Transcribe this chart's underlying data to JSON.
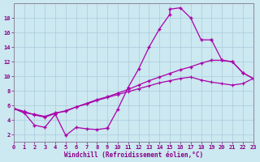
{
  "background_color": "#cce8f0",
  "grid_color": "#aaccdd",
  "line_color": "#aa00aa",
  "tick_color": "#880088",
  "xlabel": "Windchill (Refroidissement éolien,°C)",
  "xlim": [
    0,
    23
  ],
  "ylim": [
    1,
    20
  ],
  "yticks": [
    2,
    4,
    6,
    8,
    10,
    12,
    14,
    16,
    18
  ],
  "xticks": [
    0,
    1,
    2,
    3,
    4,
    5,
    6,
    7,
    8,
    9,
    10,
    11,
    12,
    13,
    14,
    15,
    16,
    17,
    18,
    19,
    20,
    21,
    22,
    23
  ],
  "curve_jagged_x": [
    0,
    1,
    2,
    3,
    4,
    5,
    6,
    7,
    8,
    9
  ],
  "curve_jagged_y": [
    5.6,
    5.0,
    3.3,
    3.0,
    4.8,
    1.9,
    3.0,
    2.8,
    2.7,
    2.9
  ],
  "curve_top_x": [
    9,
    10,
    11,
    12,
    13,
    14,
    15,
    15,
    16,
    17,
    18,
    19
  ],
  "curve_top_y": [
    2.9,
    5.5,
    8.5,
    11.0,
    14.0,
    16.5,
    18.5,
    19.2,
    19.4,
    18.0,
    15.0,
    15.0
  ],
  "curve_top2_x": [
    19,
    20,
    21,
    22,
    23
  ],
  "curve_top2_y": [
    15.0,
    12.2,
    12.0,
    10.5,
    9.7
  ],
  "curve_mid_x": [
    0,
    1,
    2,
    3,
    4,
    5,
    6,
    7,
    8,
    9,
    10,
    11,
    12,
    13,
    14,
    15,
    16,
    17,
    18,
    19,
    20,
    21,
    22,
    23
  ],
  "curve_mid_y": [
    5.6,
    5.0,
    4.8,
    4.5,
    5.0,
    5.2,
    5.8,
    6.3,
    6.8,
    7.2,
    7.7,
    8.2,
    8.8,
    9.4,
    9.9,
    10.4,
    10.9,
    11.3,
    11.8,
    12.2,
    12.2,
    12.0,
    10.5,
    9.7
  ],
  "curve_bot_x": [
    0,
    1,
    2,
    3,
    4,
    5,
    6,
    7,
    8,
    9,
    10,
    11,
    12,
    13,
    14,
    15,
    16,
    17,
    18,
    19,
    20,
    21,
    22,
    23
  ],
  "curve_bot_y": [
    5.6,
    5.2,
    4.7,
    4.4,
    4.9,
    5.3,
    5.8,
    6.2,
    6.7,
    7.1,
    7.5,
    7.9,
    8.3,
    8.7,
    9.1,
    9.4,
    9.7,
    9.9,
    9.5,
    9.2,
    9.0,
    8.8,
    9.0,
    9.7
  ]
}
